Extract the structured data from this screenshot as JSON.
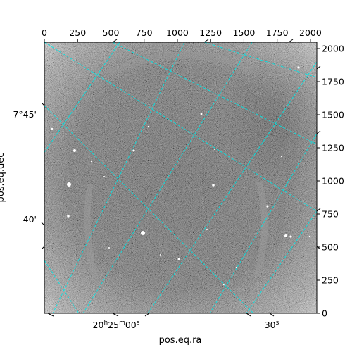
{
  "chart_data": {
    "type": "image",
    "colormap": "gray",
    "grid_color": "#00e5e5",
    "pixel_x_ticks": [
      "0",
      "250",
      "500",
      "750",
      "1000",
      "1250",
      "1500",
      "1750",
      "2000"
    ],
    "pixel_y_ticks": [
      "0",
      "250",
      "500",
      "750",
      "1000",
      "1250",
      "1500",
      "1750",
      "2000"
    ],
    "pixel_range": [
      0,
      2048
    ],
    "ra_tick_labels": [
      {
        "h": "20",
        "m": "25",
        "s": "00",
        "s_only": false
      },
      {
        "s": "30",
        "s_only": true
      }
    ],
    "dec_tick_labels": [
      "-7°45'",
      "40'"
    ],
    "xlabel": "pos.eq.ra",
    "ylabel": "pos.eq.dec",
    "grid": true
  }
}
